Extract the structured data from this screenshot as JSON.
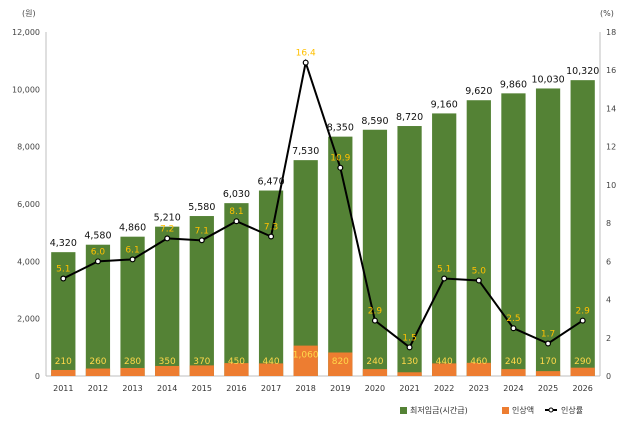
{
  "chart_data": {
    "type": "bar",
    "categories": [
      "2011",
      "2012",
      "2013",
      "2014",
      "2015",
      "2016",
      "2017",
      "2018",
      "2019",
      "2020",
      "2021",
      "2022",
      "2023",
      "2024",
      "2025",
      "2026"
    ],
    "left_unit": "(원)",
    "right_unit": "(%)",
    "ylim": [
      0,
      12000
    ],
    "y_ticks": [
      "0",
      "2,000",
      "4,000",
      "6,000",
      "8,000",
      "10,000",
      "12,000"
    ],
    "y2lim": [
      0,
      18
    ],
    "y2_ticks": [
      "0",
      "2",
      "4",
      "6",
      "8",
      "10",
      "12",
      "14",
      "16",
      "18"
    ],
    "series": [
      {
        "name": "최저임금(시간급)",
        "kind": "bar",
        "color": "#548235",
        "values": [
          4320,
          4580,
          4860,
          5210,
          5580,
          6030,
          6470,
          7530,
          8350,
          8590,
          8720,
          9160,
          9620,
          9860,
          10030,
          10320
        ],
        "labels": [
          "4,320",
          "4,580",
          "4,860",
          "5,210",
          "5,580",
          "6,030",
          "6,470",
          "7,530",
          "8,350",
          "8,590",
          "8,720",
          "9,160",
          "9,620",
          "9,860",
          "10,030",
          "10,320"
        ]
      },
      {
        "name": "인상액",
        "kind": "bar",
        "color": "#ed7d31",
        "values": [
          210,
          260,
          280,
          350,
          370,
          450,
          440,
          1060,
          820,
          240,
          130,
          440,
          460,
          240,
          170,
          290
        ],
        "labels": [
          "210",
          "260",
          "280",
          "350",
          "370",
          "450",
          "440",
          "1,060",
          "820",
          "240",
          "130",
          "440",
          "460",
          "240",
          "170",
          "290"
        ]
      },
      {
        "name": "인상률",
        "kind": "line",
        "axis": "right",
        "color": "#000000",
        "values": [
          5.1,
          6.0,
          6.1,
          7.2,
          7.1,
          8.1,
          7.3,
          16.4,
          10.9,
          2.9,
          1.5,
          5.1,
          5.0,
          2.5,
          1.7,
          2.9
        ],
        "labels": [
          "5.1",
          "6.0",
          "6.1",
          "7.2",
          "7.1",
          "8.1",
          "7.3",
          "16.4",
          "10.9",
          "2.9",
          "1.5",
          "5.1",
          "5.0",
          "2.5",
          "1.7",
          "2.9"
        ]
      }
    ],
    "legend_position": "bottom-right",
    "grid": false
  }
}
